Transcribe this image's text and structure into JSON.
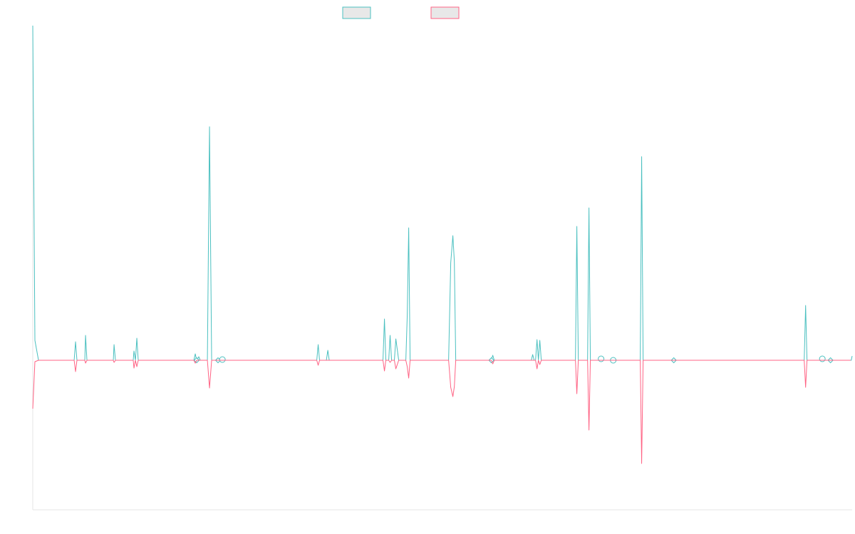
{
  "chart_data": {
    "type": "line",
    "title": "",
    "xlabel": "",
    "ylabel": "",
    "xlim": [
      0,
      1
    ],
    "ylim": [
      -0.21,
      0.47
    ],
    "grid": false,
    "legend": "top-center",
    "colors": [
      "#4bc0c0",
      "#ff6384"
    ],
    "series": [
      {
        "color": "#4bc0c0",
        "points": [
          [
            0.0,
            0.47
          ],
          [
            0.0026,
            0.028
          ],
          [
            0.007,
            0.0
          ],
          [
            0.0505,
            0.0
          ],
          [
            0.0522,
            0.026
          ],
          [
            0.0539,
            0.0
          ],
          [
            0.0635,
            0.0
          ],
          [
            0.0644,
            0.035
          ],
          [
            0.0661,
            0.0
          ],
          [
            0.0983,
            0.0
          ],
          [
            0.0992,
            0.022
          ],
          [
            0.1009,
            0.0
          ],
          [
            0.1226,
            0.0
          ],
          [
            0.1235,
            0.013
          ],
          [
            0.1253,
            0.0
          ],
          [
            0.127,
            0.031
          ],
          [
            0.1287,
            0.0
          ],
          [
            0.1966,
            0.0
          ],
          [
            0.1983,
            0.009
          ],
          [
            0.2,
            0.0
          ],
          [
            0.2026,
            0.005
          ],
          [
            0.2044,
            0.0
          ],
          [
            0.2131,
            0.0
          ],
          [
            0.2157,
            0.328
          ],
          [
            0.2183,
            0.0
          ],
          [
            0.2296,
            0.0
          ],
          [
            0.2314,
            0.002
          ],
          [
            0.2331,
            0.0
          ],
          [
            0.3466,
            0.0
          ],
          [
            0.3483,
            0.022
          ],
          [
            0.35,
            0.0
          ],
          [
            0.3583,
            0.0
          ],
          [
            0.3601,
            0.014
          ],
          [
            0.3618,
            0.0
          ],
          [
            0.4274,
            0.0
          ],
          [
            0.4292,
            0.058
          ],
          [
            0.4309,
            0.0
          ],
          [
            0.4344,
            0.0
          ],
          [
            0.4361,
            0.035
          ],
          [
            0.4379,
            0.0
          ],
          [
            0.4413,
            0.0
          ],
          [
            0.4431,
            0.03
          ],
          [
            0.4466,
            0.0
          ],
          [
            0.4553,
            0.0
          ],
          [
            0.457,
            0.062
          ],
          [
            0.4588,
            0.186
          ],
          [
            0.4605,
            0.0
          ],
          [
            0.5075,
            0.0
          ],
          [
            0.5101,
            0.137
          ],
          [
            0.5127,
            0.175
          ],
          [
            0.5145,
            0.139
          ],
          [
            0.5162,
            0.0
          ],
          [
            0.5179,
            0.0
          ],
          [
            0.5597,
            0.0
          ],
          [
            0.5614,
            0.007
          ],
          [
            0.5632,
            0.0
          ],
          [
            0.6084,
            0.0
          ],
          [
            0.6101,
            0.008
          ],
          [
            0.6119,
            0.0
          ],
          [
            0.6136,
            0.0
          ],
          [
            0.6154,
            0.029
          ],
          [
            0.6171,
            0.0
          ],
          [
            0.6188,
            0.028
          ],
          [
            0.6206,
            0.0
          ],
          [
            0.6623,
            0.0
          ],
          [
            0.664,
            0.188
          ],
          [
            0.6658,
            0.0
          ],
          [
            0.6771,
            0.0
          ],
          [
            0.6788,
            0.214
          ],
          [
            0.6805,
            0.0
          ],
          [
            0.7414,
            0.0
          ],
          [
            0.7431,
            0.286
          ],
          [
            0.7449,
            0.0
          ],
          [
            0.7849,
            0.0
          ],
          [
            0.7866,
            0.0
          ],
          [
            0.9415,
            0.0
          ],
          [
            0.9432,
            0.077
          ],
          [
            0.9449,
            0.0
          ],
          [
            0.9989,
            0.0
          ],
          [
            1.0,
            0.006
          ],
          [
            0.998,
            0.0
          ]
        ],
        "markers": [
          [
            0.2,
            0.0,
            "diamond"
          ],
          [
            0.2261,
            0.0,
            "diamond"
          ],
          [
            0.2314,
            0.001,
            "circle"
          ],
          [
            0.5597,
            0.0,
            "diamond"
          ],
          [
            0.6936,
            0.002,
            "circle"
          ],
          [
            0.7084,
            0.0,
            "circle"
          ],
          [
            0.7823,
            0.0,
            "diamond"
          ],
          [
            0.9636,
            0.002,
            "circle"
          ],
          [
            0.9736,
            0.0,
            "diamond"
          ]
        ]
      },
      {
        "color": "#ff6384",
        "points": [
          [
            0.0,
            -0.068
          ],
          [
            0.0026,
            -0.002
          ],
          [
            0.007,
            0.0
          ],
          [
            0.0505,
            0.0
          ],
          [
            0.0522,
            -0.016
          ],
          [
            0.0539,
            0.0
          ],
          [
            0.0635,
            0.0
          ],
          [
            0.0644,
            -0.004
          ],
          [
            0.0661,
            0.0
          ],
          [
            0.0983,
            0.0
          ],
          [
            0.0992,
            -0.003
          ],
          [
            0.1009,
            0.0
          ],
          [
            0.1226,
            0.0
          ],
          [
            0.1235,
            -0.011
          ],
          [
            0.1253,
            0.0
          ],
          [
            0.127,
            -0.009
          ],
          [
            0.1287,
            0.0
          ],
          [
            0.1966,
            0.0
          ],
          [
            0.1983,
            -0.004
          ],
          [
            0.2,
            0.0
          ],
          [
            0.2131,
            0.0
          ],
          [
            0.2157,
            -0.039
          ],
          [
            0.2183,
            0.0
          ],
          [
            0.3466,
            0.0
          ],
          [
            0.3483,
            -0.007
          ],
          [
            0.35,
            0.0
          ],
          [
            0.4274,
            0.0
          ],
          [
            0.4292,
            -0.015
          ],
          [
            0.4309,
            0.0
          ],
          [
            0.4344,
            0.0
          ],
          [
            0.4361,
            -0.003
          ],
          [
            0.4379,
            0.0
          ],
          [
            0.4413,
            0.0
          ],
          [
            0.4431,
            -0.012
          ],
          [
            0.4466,
            0.0
          ],
          [
            0.4553,
            0.0
          ],
          [
            0.457,
            -0.009
          ],
          [
            0.4588,
            -0.025
          ],
          [
            0.4605,
            0.0
          ],
          [
            0.5075,
            0.0
          ],
          [
            0.5101,
            -0.038
          ],
          [
            0.5127,
            -0.051
          ],
          [
            0.5145,
            -0.037
          ],
          [
            0.5162,
            0.0
          ],
          [
            0.5597,
            0.0
          ],
          [
            0.5614,
            -0.005
          ],
          [
            0.5632,
            0.0
          ],
          [
            0.6136,
            0.0
          ],
          [
            0.6154,
            -0.012
          ],
          [
            0.6171,
            0.0
          ],
          [
            0.6188,
            -0.006
          ],
          [
            0.6206,
            0.0
          ],
          [
            0.6623,
            0.0
          ],
          [
            0.664,
            -0.047
          ],
          [
            0.6658,
            0.0
          ],
          [
            0.6771,
            0.0
          ],
          [
            0.6788,
            -0.098
          ],
          [
            0.6805,
            0.0
          ],
          [
            0.7414,
            0.0
          ],
          [
            0.7431,
            -0.145
          ],
          [
            0.7449,
            0.0
          ],
          [
            0.9415,
            0.0
          ],
          [
            0.9432,
            -0.038
          ],
          [
            0.9449,
            0.0
          ],
          [
            0.998,
            0.0
          ]
        ]
      }
    ]
  }
}
